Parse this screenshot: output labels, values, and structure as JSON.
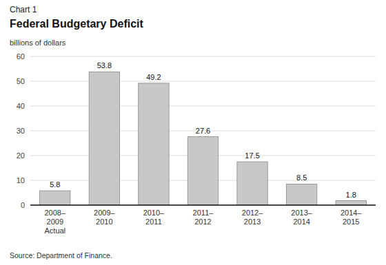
{
  "chart_data": {
    "type": "bar",
    "title": "Federal Budgetary Deficit",
    "subtitle": "Chart 1",
    "ylabel": "billions of dollars",
    "annotations": [
      "Source: Department of Finance."
    ],
    "categories": [
      "2008–\n2009\nActual",
      "2009–\n2010",
      "2010–\n2011",
      "2011–\n2012",
      "2012–\n2013",
      "2013–\n2014",
      "2014–\n2015"
    ],
    "values": [
      5.8,
      53.8,
      49.2,
      27.6,
      17.5,
      8.5,
      1.8
    ],
    "color": "#c8c8c8",
    "ylim": [
      0,
      60
    ],
    "yticks": [
      0,
      10,
      20,
      30,
      40,
      50,
      60
    ],
    "grid": true,
    "data_labels": true
  }
}
